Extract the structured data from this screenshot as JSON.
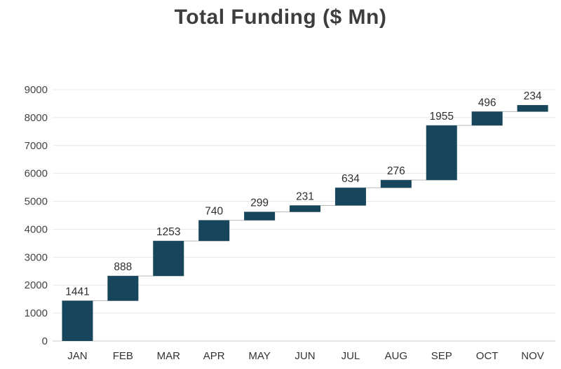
{
  "chart_data": {
    "type": "bar",
    "subtype": "waterfall",
    "title": "Total Funding ($ Mn)",
    "categories": [
      "JAN",
      "FEB",
      "MAR",
      "APR",
      "MAY",
      "JUN",
      "JUL",
      "AUG",
      "SEP",
      "OCT",
      "NOV"
    ],
    "values": [
      1441,
      888,
      1253,
      740,
      299,
      231,
      634,
      276,
      1955,
      496,
      234
    ],
    "cumulative": [
      1441,
      2329,
      3582,
      4322,
      4621,
      4852,
      5486,
      5762,
      7717,
      8213,
      8447
    ],
    "xlabel": "",
    "ylabel": "",
    "ylim": [
      0,
      9000
    ],
    "ytick_interval": 1000,
    "ytick_labels": [
      "0",
      "1000",
      "2000",
      "3000",
      "4000",
      "5000",
      "6000",
      "7000",
      "8000",
      "9000"
    ],
    "grid": true,
    "legend": "none",
    "colors": {
      "bar": "#17455C",
      "grid": "#e8e8e8",
      "baseline": "#c9c9c9",
      "connector": "#b8b8b8",
      "title": "#3d3d3d",
      "axis_text": "#444444",
      "background": "#ffffff"
    }
  }
}
